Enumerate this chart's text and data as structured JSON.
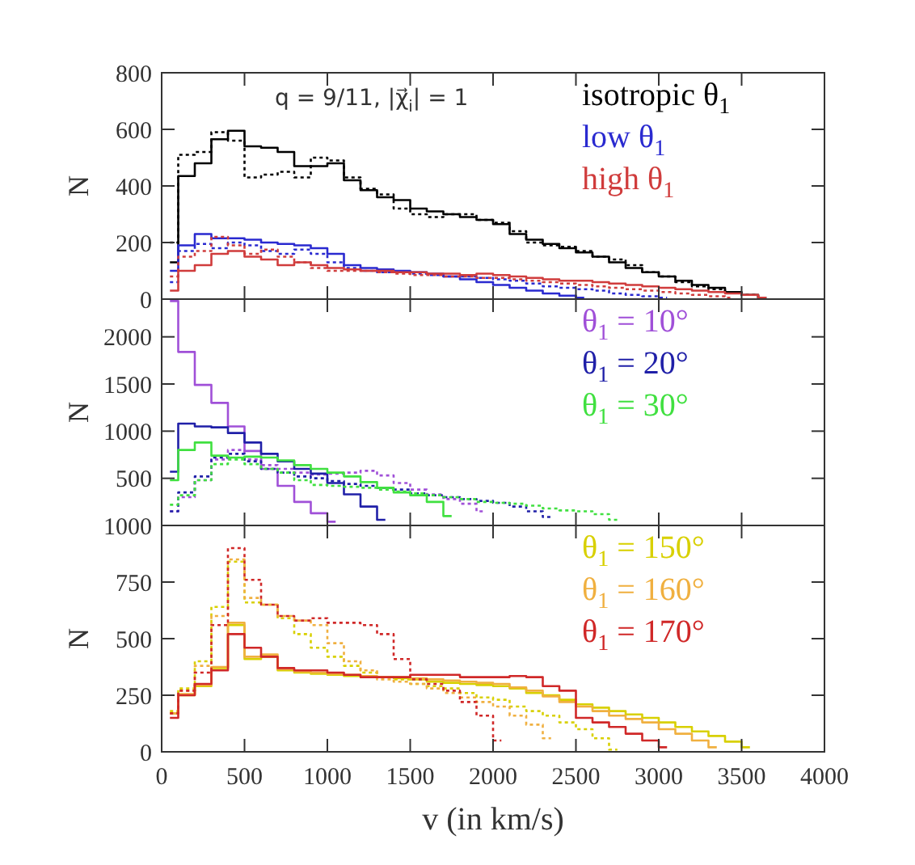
{
  "chart_data": [
    {
      "type": "step",
      "ylabel": "N",
      "annotations": [
        "q = 9/11, |χ⃗$_{i}$| = 1"
      ],
      "legend": "top right",
      "tick_labels": "y",
      "xlim": [
        0,
        4000
      ],
      "xticks": [
        {
          "value": 0,
          "label": null
        },
        {
          "value": 500,
          "label": null
        },
        {
          "value": 1000,
          "label": null
        },
        {
          "value": 1500,
          "label": null
        },
        {
          "value": 2000,
          "label": null
        },
        {
          "value": 2500,
          "label": null
        },
        {
          "value": 3000,
          "label": null
        },
        {
          "value": 3500,
          "label": null
        },
        {
          "value": 4000,
          "label": null
        }
      ],
      "ylim": [
        0,
        800
      ],
      "yticks": [
        0,
        200,
        400,
        600,
        800
      ],
      "x": [
        50,
        150,
        250,
        350,
        450,
        550,
        650,
        750,
        850,
        950,
        1050,
        1150,
        1250,
        1350,
        1450,
        1550,
        1650,
        1750,
        1850,
        1950,
        2050,
        2150,
        2250,
        2350,
        2450,
        2550,
        2650,
        2750,
        2850,
        2950,
        3050,
        3150,
        3250,
        3350,
        3450,
        3550,
        3650
      ],
      "series": [
        {
          "name": "isotropic θ$_{1}$",
          "color": "#000000",
          "values": [
            130,
            435,
            480,
            565,
            595,
            540,
            535,
            520,
            470,
            470,
            480,
            420,
            385,
            360,
            350,
            320,
            310,
            300,
            290,
            280,
            265,
            230,
            210,
            195,
            180,
            165,
            150,
            130,
            110,
            95,
            80,
            65,
            50,
            40,
            25,
            15,
            5
          ]
        },
        {
          "color": "#000000",
          "line_style": "dotted",
          "values": [
            200,
            510,
            520,
            590,
            560,
            430,
            440,
            450,
            430,
            500,
            490,
            430,
            390,
            370,
            320,
            300,
            290,
            300,
            300,
            280,
            270,
            240,
            200,
            190,
            185,
            170,
            150,
            140,
            120,
            95,
            80,
            60,
            45,
            35,
            25,
            15,
            5
          ]
        },
        {
          "name": "low θ$_{1}$",
          "color": "#2a2ad0",
          "values": [
            100,
            190,
            230,
            215,
            215,
            210,
            200,
            195,
            190,
            180,
            160,
            120,
            110,
            105,
            100,
            95,
            90,
            80,
            70,
            60,
            50,
            40,
            30,
            20,
            12,
            5,
            null,
            null,
            null,
            null,
            null,
            null,
            null,
            null,
            null,
            null,
            null
          ]
        },
        {
          "color": "#2a2ad0",
          "line_style": "dotted",
          "values": [
            60,
            170,
            195,
            180,
            200,
            190,
            170,
            160,
            175,
            160,
            130,
            110,
            100,
            95,
            95,
            90,
            85,
            80,
            80,
            75,
            70,
            65,
            55,
            45,
            40,
            35,
            30,
            20,
            15,
            10,
            5,
            null,
            null,
            null,
            null,
            null,
            null
          ]
        },
        {
          "name": "high θ$_{1}$",
          "color": "#d03c3c",
          "values": [
            30,
            100,
            120,
            160,
            170,
            150,
            140,
            120,
            130,
            120,
            110,
            105,
            100,
            100,
            95,
            95,
            90,
            90,
            85,
            90,
            85,
            80,
            75,
            70,
            65,
            65,
            60,
            55,
            50,
            45,
            40,
            35,
            30,
            25,
            20,
            15,
            5
          ]
        },
        {
          "color": "#d03c3c",
          "line_style": "dotted",
          "values": [
            80,
            150,
            170,
            220,
            190,
            160,
            175,
            150,
            130,
            110,
            100,
            100,
            100,
            95,
            90,
            85,
            85,
            80,
            80,
            75,
            75,
            70,
            65,
            60,
            55,
            50,
            45,
            40,
            35,
            30,
            25,
            20,
            15,
            10,
            5,
            null,
            null
          ]
        }
      ]
    },
    {
      "type": "step",
      "ylabel": "N",
      "legend": "top right",
      "tick_labels": "y",
      "xlim": [
        0,
        4000
      ],
      "xticks": [
        {
          "value": 0,
          "label": null
        },
        {
          "value": 500,
          "label": null
        },
        {
          "value": 1000,
          "label": null
        },
        {
          "value": 1500,
          "label": null
        },
        {
          "value": 2000,
          "label": null
        },
        {
          "value": 2500,
          "label": null
        },
        {
          "value": 3000,
          "label": null
        },
        {
          "value": 3500,
          "label": null
        },
        {
          "value": 4000,
          "label": null
        }
      ],
      "ylim": [
        0,
        2400
      ],
      "yticks": [
        {
          "value": 0,
          "label": null
        },
        500,
        1000,
        1500,
        2000
      ],
      "x": [
        50,
        150,
        250,
        350,
        450,
        550,
        650,
        750,
        850,
        950,
        1050,
        1150,
        1250,
        1350,
        1450,
        1550,
        1650,
        1750,
        1850,
        1950,
        2050,
        2150,
        2250,
        2350,
        2450,
        2550,
        2650,
        2750
      ],
      "series": [
        {
          "name": "θ$_{1}$ = 10°",
          "color": "#a050d8",
          "values": [
            2380,
            1840,
            1490,
            1300,
            1050,
            790,
            600,
            420,
            250,
            130,
            40,
            null,
            null,
            null,
            null,
            null,
            null,
            null,
            null,
            null,
            null,
            null,
            null,
            null,
            null,
            null,
            null,
            null
          ]
        },
        {
          "color": "#a050d8",
          "line_style": "dotted",
          "values": [
            150,
            300,
            480,
            700,
            800,
            700,
            640,
            600,
            560,
            540,
            550,
            560,
            580,
            530,
            450,
            380,
            330,
            280,
            230,
            150,
            null,
            null,
            null,
            null,
            null,
            null,
            null,
            null
          ]
        },
        {
          "name": "θ$_{1}$ = 20°",
          "color": "#2020a8",
          "values": [
            570,
            1080,
            1050,
            1040,
            980,
            880,
            760,
            680,
            600,
            550,
            450,
            330,
            200,
            60,
            null,
            null,
            null,
            null,
            null,
            null,
            null,
            null,
            null,
            null,
            null,
            null,
            null,
            null
          ]
        },
        {
          "color": "#2020a8",
          "line_style": "dotted",
          "values": [
            150,
            350,
            520,
            720,
            760,
            680,
            600,
            560,
            520,
            500,
            470,
            440,
            420,
            400,
            380,
            340,
            320,
            300,
            280,
            260,
            240,
            200,
            150,
            90,
            null,
            null,
            null,
            null
          ]
        },
        {
          "name": "θ$_{1}$ = 30°",
          "color": "#40e040",
          "values": [
            480,
            800,
            880,
            740,
            720,
            730,
            720,
            690,
            640,
            600,
            560,
            520,
            460,
            400,
            350,
            320,
            250,
            100,
            null,
            null,
            null,
            null,
            null,
            null,
            null,
            null,
            null,
            null
          ]
        },
        {
          "color": "#40e040",
          "line_style": "dotted",
          "values": [
            220,
            320,
            480,
            650,
            700,
            650,
            600,
            560,
            480,
            430,
            420,
            410,
            400,
            380,
            360,
            340,
            320,
            300,
            280,
            250,
            240,
            230,
            210,
            180,
            160,
            150,
            120,
            60
          ]
        }
      ]
    },
    {
      "type": "step",
      "ylabel": "N",
      "xlabel": "v (in km/s)",
      "legend": "top right",
      "xlim": [
        0,
        4000
      ],
      "xticks": [
        0,
        500,
        1000,
        1500,
        2000,
        2500,
        3000,
        3500,
        4000
      ],
      "ylim": [
        0,
        1000
      ],
      "yticks": [
        0,
        250,
        500,
        750,
        1000
      ],
      "x": [
        50,
        150,
        250,
        350,
        450,
        550,
        650,
        750,
        850,
        950,
        1050,
        1150,
        1250,
        1350,
        1450,
        1550,
        1650,
        1750,
        1850,
        1950,
        2050,
        2150,
        2250,
        2350,
        2450,
        2550,
        2650,
        2750,
        2850,
        2950,
        3050,
        3150,
        3250,
        3350,
        3450,
        3550
      ],
      "series": [
        {
          "name": "θ$_{1}$ = 150°",
          "color": "#d8d000",
          "values": [
            170,
            250,
            290,
            370,
            560,
            410,
            420,
            360,
            350,
            345,
            340,
            335,
            330,
            330,
            325,
            320,
            310,
            305,
            300,
            295,
            290,
            280,
            260,
            250,
            230,
            210,
            195,
            180,
            165,
            150,
            130,
            110,
            90,
            70,
            45,
            20
          ]
        },
        {
          "color": "#d8d000",
          "line_style": "dotted",
          "values": [
            180,
            280,
            400,
            640,
            840,
            660,
            650,
            590,
            520,
            460,
            420,
            380,
            350,
            330,
            320,
            300,
            290,
            280,
            260,
            240,
            230,
            200,
            180,
            160,
            130,
            100,
            60,
            10,
            null,
            null,
            null,
            null,
            null,
            null,
            null,
            null
          ]
        },
        {
          "name": "θ$_{1}$ = 160°",
          "color": "#f0b040",
          "values": [
            170,
            255,
            295,
            375,
            570,
            420,
            430,
            365,
            355,
            350,
            345,
            340,
            335,
            330,
            330,
            325,
            320,
            315,
            310,
            305,
            300,
            285,
            270,
            245,
            220,
            200,
            180,
            160,
            145,
            130,
            100,
            80,
            50,
            20,
            null,
            null
          ]
        },
        {
          "color": "#f0b040",
          "line_style": "dotted",
          "values": [
            170,
            270,
            380,
            600,
            850,
            680,
            650,
            600,
            580,
            560,
            480,
            400,
            360,
            320,
            310,
            300,
            280,
            260,
            240,
            220,
            200,
            160,
            120,
            60,
            null,
            null,
            null,
            null,
            null,
            null,
            null,
            null,
            null,
            null,
            null,
            null
          ]
        },
        {
          "name": "θ$_{1}$ = 170°",
          "color": "#d02828",
          "values": [
            150,
            250,
            300,
            360,
            520,
            460,
            420,
            370,
            360,
            360,
            350,
            340,
            330,
            330,
            330,
            340,
            340,
            340,
            330,
            330,
            330,
            335,
            330,
            290,
            270,
            150,
            130,
            110,
            80,
            50,
            20,
            null,
            null,
            null,
            null,
            null
          ]
        },
        {
          "color": "#d02828",
          "line_style": "dotted",
          "values": [
            170,
            270,
            350,
            560,
            900,
            760,
            650,
            600,
            580,
            590,
            570,
            570,
            560,
            520,
            410,
            320,
            300,
            270,
            220,
            160,
            50,
            null,
            null,
            null,
            null,
            null,
            null,
            null,
            null,
            null,
            null,
            null,
            null,
            null,
            null,
            null
          ]
        }
      ]
    }
  ]
}
